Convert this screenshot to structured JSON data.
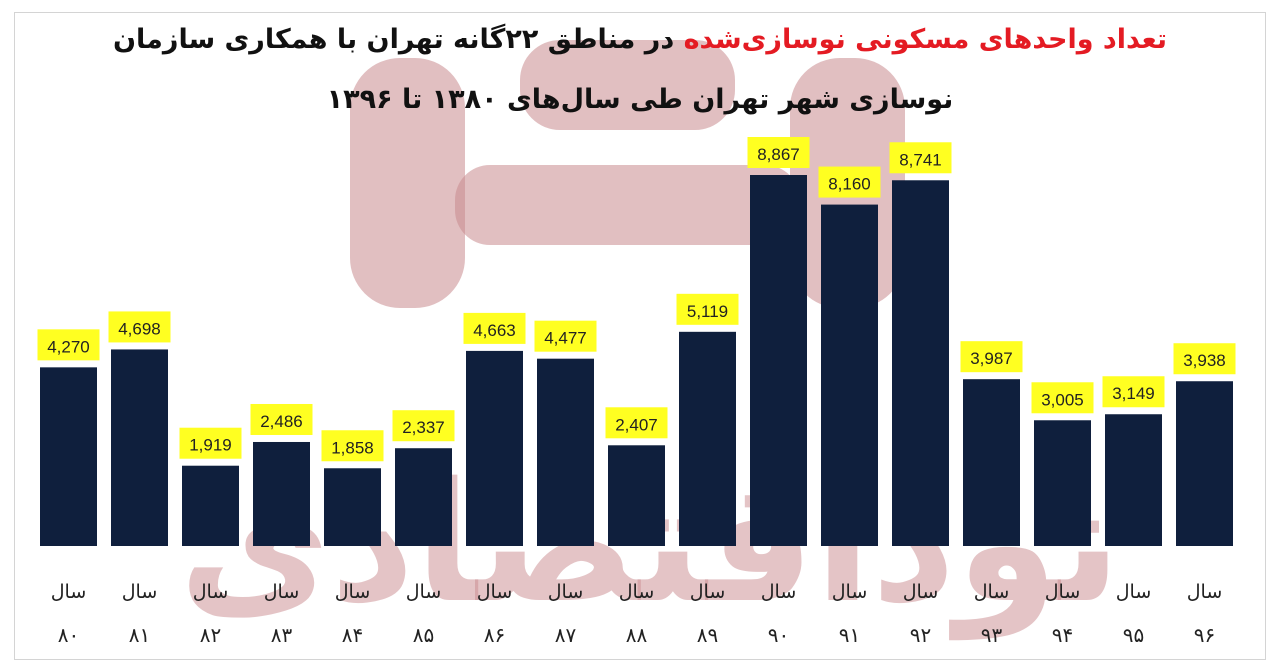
{
  "title": {
    "line1_red": "تعداد واحدهای مسکونی نوسازی‌شده",
    "line1_rest": " در مناطق ۲۲گانه تهران با همکاری سازمان",
    "line2": "نوسازی شهر تهران طی سال‌های ۱۳۸۰ تا ۱۳۹۶"
  },
  "watermark": {
    "text": "نوداقتصادی"
  },
  "colors": {
    "bar": "#0f1f3d",
    "label_bg": "#ffff21",
    "title_accent": "#e41b23",
    "watermark": "#c98a8e"
  },
  "chart_data": {
    "type": "bar",
    "category_prefix": "سال",
    "categories": [
      "۸۰",
      "۸۱",
      "۸۲",
      "۸۳",
      "۸۴",
      "۸۵",
      "۸۶",
      "۸۷",
      "۸۸",
      "۸۹",
      "۹۰",
      "۹۱",
      "۹۲",
      "۹۳",
      "۹۴",
      "۹۵",
      "۹۶"
    ],
    "values": [
      4270,
      4698,
      1919,
      2486,
      1858,
      2337,
      4663,
      4477,
      2407,
      5119,
      8867,
      8160,
      8741,
      3987,
      3005,
      3149,
      3938
    ],
    "value_labels": [
      "4,270",
      "4,698",
      "1,919",
      "2,486",
      "1,858",
      "2,337",
      "4,663",
      "4,477",
      "2,407",
      "5,119",
      "8,867",
      "8,160",
      "8,741",
      "3,987",
      "3,005",
      "3,149",
      "3,938"
    ],
    "ylim": [
      0,
      9000
    ],
    "grid": false,
    "legend": "none"
  }
}
